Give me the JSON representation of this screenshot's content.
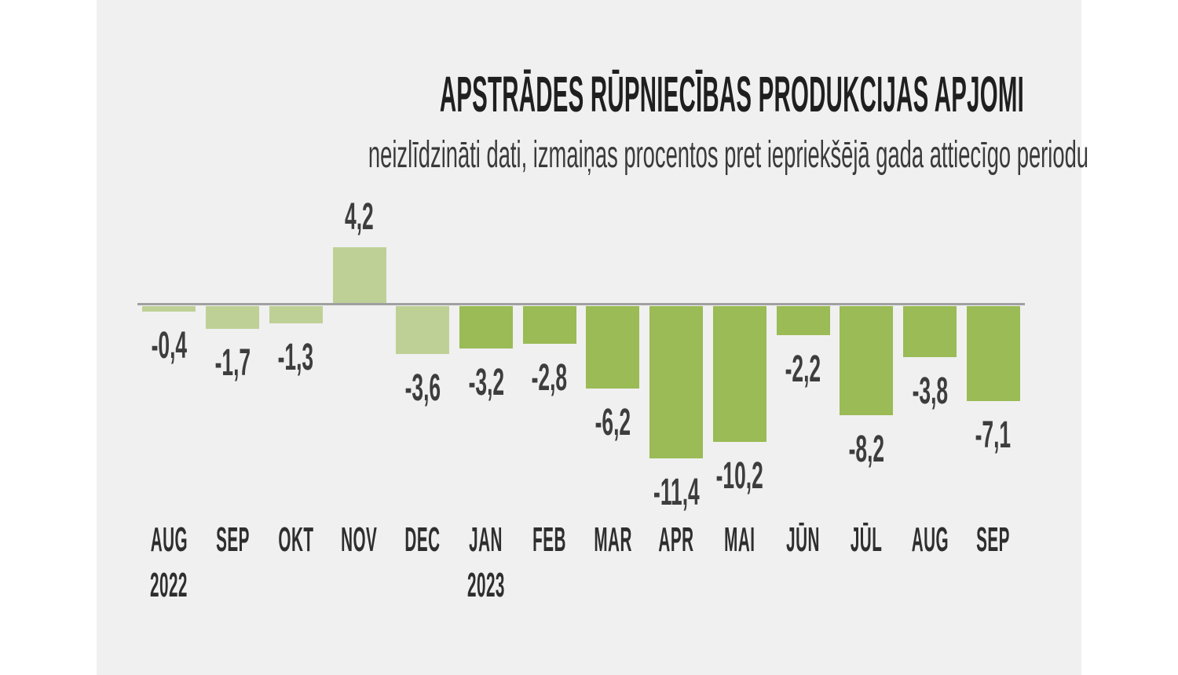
{
  "title": "APSTRĀDES RŪPNIECĪBAS PRODUKCIJAS APJOMI",
  "subtitle": "neizlīdzināti dati, izmaiņas procentos pret iepriekšējā gada attiecīgo periodu",
  "colors": {
    "page_background": "#ffffff",
    "chart_background": "#f0f0f0",
    "bar_2022": "#bfd096",
    "bar_2023": "#9abb55",
    "axis_line": "#a0a0a0",
    "title_text": "#1f1f1f",
    "subtitle_text": "#3a3a3a",
    "value_text": "#3d3d3d",
    "month_text": "#2e2e2e"
  },
  "chart_data": {
    "type": "bar",
    "title": "APSTRĀDES RŪPNIECĪBAS PRODUKCIJAS APJOMI",
    "subtitle": "neizlīdzināti dati, izmaiņas procentos pret iepriekšējā gada attiecīgo periodu",
    "categories": [
      "AUG",
      "SEP",
      "OKT",
      "NOV",
      "DEC",
      "JAN",
      "FEB",
      "MAR",
      "APR",
      "MAI",
      "JŪN",
      "JŪL",
      "AUG",
      "SEP"
    ],
    "year_markers": [
      {
        "index": 0,
        "label": "2022"
      },
      {
        "index": 5,
        "label": "2023"
      }
    ],
    "values": [
      -0.4,
      -1.7,
      -1.3,
      4.2,
      -3.6,
      -3.2,
      -2.8,
      -6.2,
      -11.4,
      -10.2,
      -2.2,
      -8.2,
      -3.8,
      -7.1
    ],
    "value_labels": [
      "-0,4",
      "-1,7",
      "-1,3",
      "4,2",
      "-3,6",
      "-3,2",
      "-2,8",
      "-6,2",
      "-11,4",
      "-10,2",
      "-2,2",
      "-8,2",
      "-3,8",
      "-7,1"
    ],
    "series_colors": [
      "light",
      "light",
      "light",
      "light",
      "light",
      "dark",
      "dark",
      "dark",
      "dark",
      "dark",
      "dark",
      "dark",
      "dark",
      "dark"
    ],
    "xlabel": "",
    "ylabel": "",
    "ylim": [
      -12,
      5
    ],
    "grid": false,
    "legend": "none",
    "data_labels": "shown at bar ends, comma decimal separator"
  }
}
